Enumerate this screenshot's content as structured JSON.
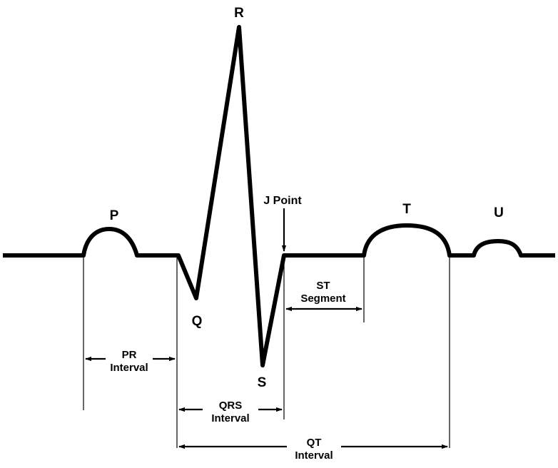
{
  "waves": {
    "p": "P",
    "q": "Q",
    "r": "R",
    "s": "S",
    "t": "T",
    "u": "U"
  },
  "annotations": {
    "j_point": "J Point"
  },
  "intervals": {
    "pr": {
      "line1": "PR",
      "line2": "Interval"
    },
    "qrs": {
      "line1": "QRS",
      "line2": "Interval"
    },
    "st": {
      "line1": "ST",
      "line2": "Segment"
    },
    "qt": {
      "line1": "QT",
      "line2": "Interval"
    }
  },
  "colors": {
    "stroke": "#000000",
    "background": "#ffffff"
  }
}
